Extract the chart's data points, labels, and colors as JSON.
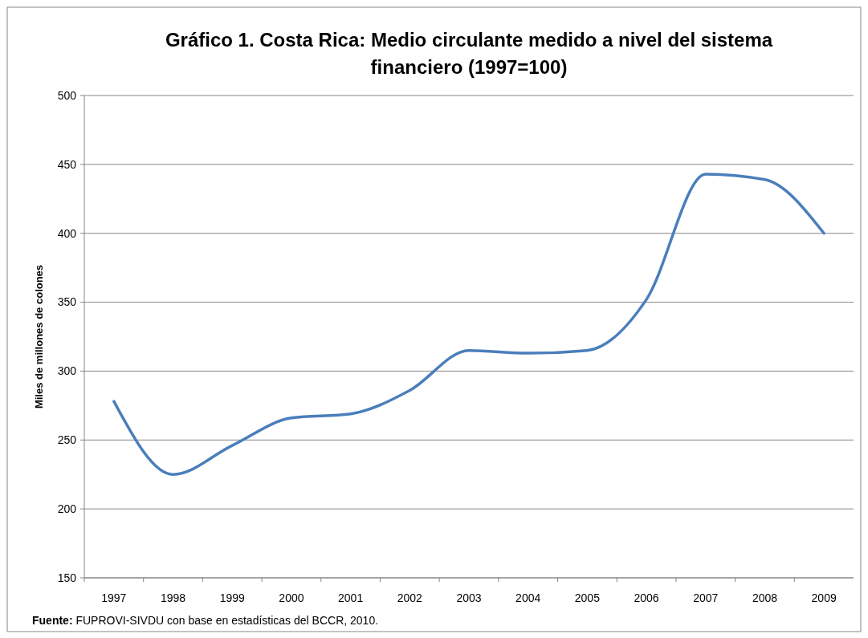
{
  "chart_data": {
    "type": "line",
    "title": "Gráfico 1. Costa Rica: Medio circulante medido a nivel del sistema financiero (1997=100)",
    "ylabel": "Miles de millones de colones",
    "categories": [
      "1997",
      "1998",
      "1999",
      "2000",
      "2001",
      "2002",
      "2003",
      "2004",
      "2005",
      "2006",
      "2007",
      "2008",
      "2009"
    ],
    "series": [
      {
        "color": "#4a7ebb",
        "values": [
          278,
          225,
          246,
          266,
          269,
          286,
          315,
          313,
          315,
          352,
          443,
          439,
          400
        ]
      }
    ],
    "ylim": [
      150,
      500
    ],
    "yticks": [
      150,
      200,
      250,
      300,
      350,
      400,
      450,
      500
    ],
    "grid": "y",
    "marker": "none",
    "line_style": "solid",
    "annotations": [
      "Fuente: FUPROVI-SIVDU con base en estadísticas del BCCR, 2010."
    ]
  }
}
